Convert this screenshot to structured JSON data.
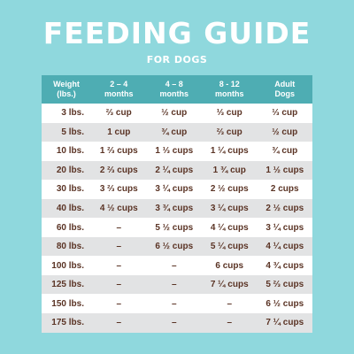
{
  "header": {
    "title": "FEEDING GUIDE",
    "subtitle": "FOR DOGS"
  },
  "colors": {
    "background": "#8fd8dd",
    "header_row": "#4eadb3",
    "text": "#5a3324"
  },
  "table": {
    "columns": [
      [
        "Weight",
        "(lbs.)"
      ],
      [
        "2 – 4",
        "months"
      ],
      [
        "4 – 8",
        "months"
      ],
      [
        "8 - 12",
        "months"
      ],
      [
        "Adult",
        "Dogs"
      ]
    ],
    "rows": [
      [
        "3 lbs.",
        "⅔ cup",
        "½ cup",
        "⅓ cup",
        "⅓ cup"
      ],
      [
        "5 lbs.",
        "1 cup",
        "¾ cup",
        "⅔ cup",
        "½ cup"
      ],
      [
        "10 lbs.",
        "1 ⅔ cups",
        "1 ⅓ cups",
        "1 ¼ cups",
        "¾ cup"
      ],
      [
        "20 lbs.",
        "2 ⅔ cups",
        "2 ¼ cups",
        "1 ¾ cup",
        "1 ½ cups"
      ],
      [
        "30 lbs.",
        "3 ⅔ cups",
        "3 ¼ cups",
        "2 ½ cups",
        "2 cups"
      ],
      [
        "40 lbs.",
        "4 ½ cups",
        "3 ¾ cups",
        "3 ¼ cups",
        "2 ½ cups"
      ],
      [
        "60 lbs.",
        "–",
        "5 ½ cups",
        "4 ¼ cups",
        "3 ¼ cups"
      ],
      [
        "80 lbs.",
        "–",
        "6 ½ cups",
        "5 ¼ cups",
        "4 ¼ cups"
      ],
      [
        "100 lbs.",
        "–",
        "–",
        "6 cups",
        "4 ¾ cups"
      ],
      [
        "125 lbs.",
        "–",
        "–",
        "7 ¼ cups",
        "5 ⅔ cups"
      ],
      [
        "150 lbs.",
        "–",
        "–",
        "–",
        "6 ½ cups"
      ],
      [
        "175 lbs.",
        "–",
        "–",
        "–",
        "7 ¼ cups"
      ]
    ]
  }
}
